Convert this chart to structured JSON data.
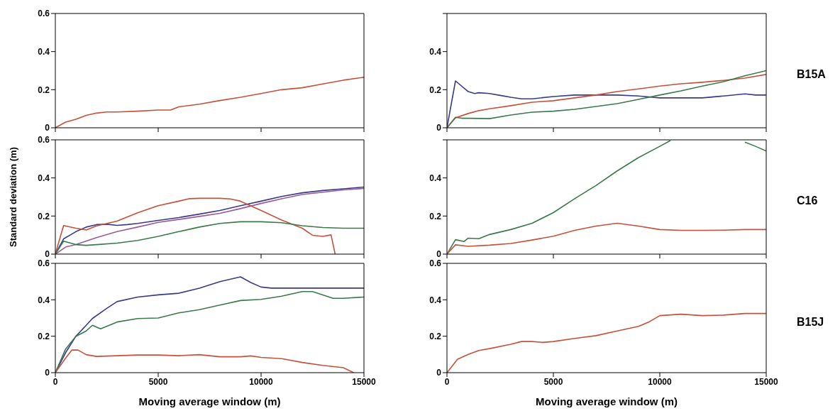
{
  "chart_data": [
    {
      "type": "line",
      "xlim": [
        0,
        15000
      ],
      "xticks": [
        0,
        5000,
        10000,
        15000
      ],
      "ylim": [
        0,
        0.6
      ],
      "yticks": [
        0,
        0.2,
        0.4,
        0.6
      ],
      "tick_labels": "y",
      "marker": "none",
      "line_style": "solid",
      "series": [
        {
          "color": "#c8503a",
          "x": [
            0,
            500,
            1000,
            1500,
            2000,
            2500,
            3000,
            4000,
            5000,
            5600,
            6000,
            7000,
            8000,
            9000,
            10000,
            11000,
            12000,
            13000,
            14000,
            15000
          ],
          "values": [
            0,
            0.03,
            0.045,
            0.065,
            0.077,
            0.083,
            0.083,
            0.087,
            0.093,
            0.093,
            0.11,
            0.124,
            0.143,
            0.16,
            0.18,
            0.2,
            0.21,
            0.23,
            0.25,
            0.265
          ]
        }
      ]
    },
    {
      "type": "line",
      "xlim": [
        0,
        15000
      ],
      "xticks": [
        0,
        5000,
        10000,
        15000
      ],
      "ylim": [
        0,
        0.6
      ],
      "yticks": [
        0,
        0.2,
        0.4,
        {
          "value": 0.6,
          "label": null
        }
      ],
      "tick_labels": "y",
      "marker": "none",
      "line_style": "solid",
      "annotations": [
        "B15A"
      ],
      "series": [
        {
          "color": "#3a3a8a",
          "x": [
            0,
            400,
            1000,
            1300,
            1500,
            2000,
            2500,
            3000,
            3500,
            4000,
            5000,
            6000,
            8000,
            9000,
            10000,
            12000,
            13000,
            14000,
            14500,
            15000
          ],
          "values": [
            0,
            0.246,
            0.19,
            0.18,
            0.184,
            0.18,
            0.17,
            0.16,
            0.152,
            0.152,
            0.164,
            0.172,
            0.172,
            0.167,
            0.157,
            0.157,
            0.167,
            0.178,
            0.172,
            0.172
          ]
        },
        {
          "color": "#c8503a",
          "x": [
            0,
            400,
            1000,
            1500,
            2000,
            3000,
            4000,
            5000,
            6000,
            7000,
            8000,
            9000,
            10000,
            11000,
            12000,
            13000,
            14000,
            15000
          ],
          "values": [
            0,
            0.052,
            0.075,
            0.09,
            0.1,
            0.116,
            0.134,
            0.142,
            0.157,
            0.172,
            0.19,
            0.204,
            0.219,
            0.231,
            0.239,
            0.249,
            0.261,
            0.28
          ]
        },
        {
          "color": "#3a7a4a",
          "x": [
            0,
            400,
            700,
            1000,
            2000,
            3000,
            4000,
            5000,
            6000,
            7000,
            8000,
            9000,
            10000,
            11000,
            12000,
            13000,
            14000,
            15000
          ],
          "values": [
            0,
            0.055,
            0.05,
            0.05,
            0.048,
            0.067,
            0.082,
            0.087,
            0.097,
            0.112,
            0.127,
            0.149,
            0.172,
            0.194,
            0.219,
            0.242,
            0.273,
            0.3
          ]
        }
      ]
    },
    {
      "type": "line",
      "xlim": [
        0,
        15000
      ],
      "xticks": [
        0,
        5000,
        10000,
        15000
      ],
      "ylim": [
        0,
        0.6
      ],
      "yticks": [
        0,
        0.2,
        0.4,
        0.6
      ],
      "tick_labels": "y",
      "ylabel": "Standard deviation (m)",
      "marker": "none",
      "line_style": "solid",
      "series": [
        {
          "color": "#3a3a8a",
          "x": [
            0,
            400,
            1000,
            1500,
            2000,
            2500,
            3000,
            3500,
            4000,
            5000,
            6000,
            7000,
            8000,
            9000,
            10000,
            11000,
            12000,
            13000,
            14000,
            15000
          ],
          "values": [
            0,
            0.08,
            0.118,
            0.142,
            0.155,
            0.157,
            0.151,
            0.155,
            0.161,
            0.177,
            0.192,
            0.21,
            0.229,
            0.254,
            0.278,
            0.303,
            0.322,
            0.334,
            0.343,
            0.352
          ]
        },
        {
          "color": "#9a5a9a",
          "x": [
            0,
            500,
            1000,
            2000,
            3000,
            4000,
            5000,
            6000,
            7000,
            8000,
            9000,
            10000,
            11000,
            12000,
            13000,
            14000,
            15000
          ],
          "values": [
            0,
            0.037,
            0.05,
            0.087,
            0.118,
            0.142,
            0.167,
            0.182,
            0.198,
            0.214,
            0.239,
            0.266,
            0.291,
            0.313,
            0.325,
            0.337,
            0.345
          ]
        },
        {
          "color": "#c8503a",
          "x": [
            0,
            400,
            1000,
            1500,
            2000,
            3000,
            4000,
            5000,
            6000,
            6500,
            7000,
            8000,
            8500,
            9000,
            10000,
            11000,
            12000,
            12500,
            13000,
            13400,
            13600
          ],
          "values": [
            0,
            0.15,
            0.136,
            0.127,
            0.148,
            0.173,
            0.217,
            0.254,
            0.278,
            0.291,
            0.293,
            0.293,
            0.29,
            0.278,
            0.229,
            0.179,
            0.136,
            0.099,
            0.093,
            0.101,
            0
          ]
        },
        {
          "color": "#3a7a4a",
          "x": [
            0,
            400,
            1000,
            1500,
            2000,
            3000,
            4000,
            5000,
            6000,
            7000,
            8000,
            9000,
            10000,
            11000,
            12000,
            13000,
            14000,
            15000
          ],
          "values": [
            0,
            0.068,
            0.05,
            0.046,
            0.05,
            0.058,
            0.072,
            0.093,
            0.118,
            0.142,
            0.161,
            0.17,
            0.17,
            0.165,
            0.149,
            0.14,
            0.136,
            0.136
          ]
        }
      ]
    },
    {
      "type": "line",
      "xlim": [
        0,
        15000
      ],
      "xticks": [
        0,
        5000,
        10000,
        15000
      ],
      "ylim": [
        0,
        0.6
      ],
      "yticks": [
        0,
        0.2,
        0.4,
        {
          "value": 0.6,
          "label": null
        }
      ],
      "tick_labels": "y",
      "marker": "none",
      "line_style": "solid",
      "annotations": [
        "C16"
      ],
      "series": [
        {
          "color": "#3a7a4a",
          "x": [
            0,
            400,
            800,
            1000,
            1500,
            2000,
            3000,
            4000,
            5000,
            6000,
            7000,
            8000,
            9000,
            10000,
            10500,
            11000,
            13500,
            14000,
            14500,
            15000
          ],
          "values": [
            0,
            0.076,
            0.066,
            0.084,
            0.081,
            0.103,
            0.129,
            0.162,
            0.218,
            0.291,
            0.36,
            0.437,
            0.507,
            0.566,
            0.596,
            null,
            null,
            0.588,
            0.566,
            0.541
          ]
        },
        {
          "color": "#c8503a",
          "x": [
            0,
            400,
            1000,
            2000,
            3000,
            4000,
            5000,
            6000,
            7000,
            8000,
            9000,
            10000,
            11000,
            12000,
            13000,
            14000,
            15000
          ],
          "values": [
            0,
            0.049,
            0.041,
            0.047,
            0.056,
            0.074,
            0.094,
            0.125,
            0.147,
            0.162,
            0.147,
            0.129,
            0.125,
            0.125,
            0.126,
            0.129,
            0.129
          ]
        }
      ]
    },
    {
      "type": "line",
      "xlim": [
        0,
        15000
      ],
      "xticks": [
        0,
        5000,
        10000,
        15000
      ],
      "ylim": [
        0,
        0.6
      ],
      "yticks": [
        0,
        0.2,
        0.4,
        0.6
      ],
      "xlabel": "Moving average window (m)",
      "marker": "none",
      "line_style": "solid",
      "series": [
        {
          "color": "#3a3a8a",
          "x": [
            0,
            500,
            1000,
            1500,
            1800,
            2500,
            3000,
            4000,
            5000,
            6000,
            7000,
            8000,
            9000,
            9500,
            10000,
            10500,
            15000
          ],
          "values": [
            0,
            0.11,
            0.2,
            0.26,
            0.297,
            0.353,
            0.39,
            0.415,
            0.427,
            0.436,
            0.464,
            0.5,
            0.526,
            0.495,
            0.47,
            0.464,
            0.464
          ]
        },
        {
          "color": "#3a7a4a",
          "x": [
            0,
            500,
            1000,
            1500,
            1800,
            2200,
            3000,
            4000,
            5000,
            6000,
            7000,
            8000,
            9000,
            10000,
            11000,
            12000,
            12500,
            13000,
            13500,
            14000,
            15000
          ],
          "values": [
            0,
            0.13,
            0.2,
            0.229,
            0.26,
            0.241,
            0.278,
            0.297,
            0.3,
            0.328,
            0.346,
            0.371,
            0.396,
            0.402,
            0.42,
            0.445,
            0.445,
            0.427,
            0.408,
            0.408,
            0.415
          ]
        },
        {
          "color": "#c8503a",
          "x": [
            0,
            500,
            800,
            1100,
            1500,
            2000,
            3000,
            4000,
            5000,
            6000,
            7000,
            8000,
            9000,
            9500,
            10000,
            11000,
            12000,
            13000,
            14000,
            14500
          ],
          "values": [
            0,
            0.08,
            0.124,
            0.124,
            0.099,
            0.089,
            0.093,
            0.097,
            0.097,
            0.093,
            0.099,
            0.087,
            0.087,
            0.092,
            0.084,
            0.077,
            0.056,
            0.04,
            0.027,
            0
          ]
        }
      ]
    },
    {
      "type": "line",
      "xlim": [
        0,
        15000
      ],
      "xticks": [
        0,
        5000,
        10000,
        15000
      ],
      "ylim": [
        0,
        0.6
      ],
      "yticks": [
        0,
        0.2,
        0.4,
        0.6
      ],
      "xlabel": "Moving average window (m)",
      "marker": "none",
      "line_style": "solid",
      "annotations": [
        "B15J"
      ],
      "series": [
        {
          "color": "#c8503a",
          "x": [
            0,
            500,
            1000,
            1500,
            2000,
            3000,
            3500,
            4000,
            4500,
            5000,
            6000,
            7000,
            8000,
            9000,
            9500,
            10000,
            11000,
            12000,
            13000,
            14000,
            15000
          ],
          "values": [
            0,
            0.074,
            0.1,
            0.122,
            0.132,
            0.156,
            0.171,
            0.171,
            0.166,
            0.171,
            0.188,
            0.203,
            0.229,
            0.254,
            0.279,
            0.313,
            0.321,
            0.313,
            0.316,
            0.325,
            0.325
          ]
        }
      ]
    }
  ]
}
